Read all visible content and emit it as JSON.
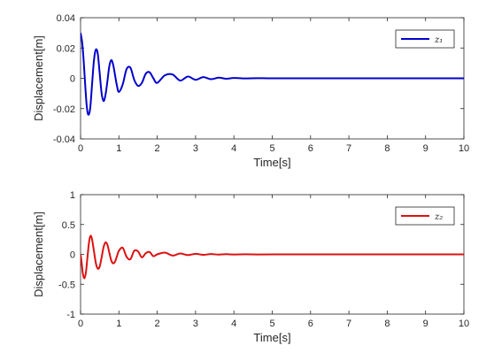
{
  "chart_data": [
    {
      "type": "line",
      "xlabel": "Time[s]",
      "ylabel": "Displacement[m]",
      "xlim": [
        0,
        10
      ],
      "ylim": [
        -0.04,
        0.04
      ],
      "x_ticks": [
        "0",
        "1",
        "2",
        "3",
        "4",
        "5",
        "6",
        "7",
        "8",
        "9",
        "10"
      ],
      "y_ticks": [
        "-0.04",
        "-0.02",
        "0",
        "0.02",
        "0.04"
      ],
      "grid": false,
      "legend_position": "top-right",
      "series": [
        {
          "name": "z₁",
          "color": "#0000cc",
          "x": [
            0,
            0.04,
            0.08,
            0.12,
            0.16,
            0.2,
            0.25,
            0.3,
            0.35,
            0.4,
            0.45,
            0.5,
            0.55,
            0.6,
            0.65,
            0.7,
            0.75,
            0.8,
            0.85,
            0.9,
            0.95,
            1.0,
            1.1,
            1.2,
            1.3,
            1.4,
            1.5,
            1.6,
            1.7,
            1.8,
            1.9,
            2.0,
            2.2,
            2.4,
            2.6,
            2.8,
            3.0,
            3.2,
            3.4,
            3.6,
            3.8,
            4.0,
            4.3,
            4.6,
            5.0,
            6.0,
            7.0,
            8.0,
            9.0,
            10.0
          ],
          "y": [
            0.03,
            0.024,
            0.012,
            -0.004,
            -0.018,
            -0.024,
            -0.02,
            -0.004,
            0.012,
            0.019,
            0.016,
            0.003,
            -0.01,
            -0.015,
            -0.011,
            -0.002,
            0.008,
            0.012,
            0.009,
            0.002,
            -0.005,
            -0.009,
            -0.004,
            0.006,
            0.007,
            -0.001,
            -0.005,
            -0.003,
            0.003,
            0.004,
            0.0,
            -0.003,
            0.002,
            0.0025,
            -0.0015,
            0.0012,
            -0.001,
            0.0008,
            -0.0006,
            0.0004,
            -0.0003,
            0.0002,
            -0.0001,
            0.0001,
            0,
            0,
            0,
            0,
            0,
            0
          ]
        }
      ]
    },
    {
      "type": "line",
      "xlabel": "Time[s]",
      "ylabel": "Displacement[m]",
      "xlim": [
        0,
        10
      ],
      "ylim": [
        -1,
        1
      ],
      "x_ticks": [
        "0",
        "1",
        "2",
        "3",
        "4",
        "5",
        "6",
        "7",
        "8",
        "9",
        "10"
      ],
      "y_ticks": [
        "-1",
        "-0.5",
        "0",
        "0.5",
        "1"
      ],
      "grid": false,
      "legend_position": "top-right",
      "series": [
        {
          "name": "z₂",
          "color": "#dd1111",
          "x": [
            0,
            0.03,
            0.06,
            0.1,
            0.14,
            0.18,
            0.22,
            0.26,
            0.3,
            0.35,
            0.4,
            0.45,
            0.5,
            0.55,
            0.6,
            0.65,
            0.7,
            0.75,
            0.8,
            0.85,
            0.9,
            0.95,
            1.0,
            1.1,
            1.2,
            1.3,
            1.4,
            1.5,
            1.6,
            1.7,
            1.8,
            1.9,
            2.0,
            2.2,
            2.4,
            2.6,
            2.8,
            3.0,
            3.2,
            3.4,
            3.6,
            3.8,
            4.0,
            4.3,
            4.6,
            5.0,
            6.0,
            7.0,
            8.0,
            9.0,
            10.0
          ],
          "y": [
            0.0,
            -0.15,
            -0.32,
            -0.4,
            -0.3,
            -0.05,
            0.2,
            0.31,
            0.25,
            0.05,
            -0.15,
            -0.24,
            -0.2,
            -0.05,
            0.12,
            0.2,
            0.16,
            0.03,
            -0.1,
            -0.15,
            -0.12,
            -0.03,
            0.06,
            0.11,
            -0.04,
            -0.08,
            0.06,
            0.05,
            -0.05,
            0.02,
            0.04,
            -0.03,
            0.0,
            0.03,
            -0.02,
            0.015,
            -0.012,
            0.01,
            -0.008,
            0.006,
            -0.004,
            0.003,
            -0.002,
            0.001,
            -0.001,
            0,
            0,
            0,
            0,
            0,
            0
          ]
        }
      ]
    }
  ]
}
